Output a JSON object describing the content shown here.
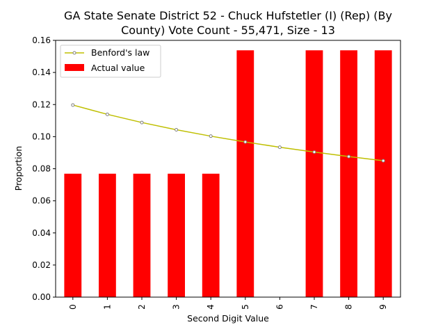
{
  "chart_data": {
    "type": "bar",
    "title_lines": [
      "GA State Senate District 52 - Chuck Hufstetler (I) (Rep) (By",
      "County) Vote Count - 55,471, Size - 13"
    ],
    "xlabel": "Second Digit Value",
    "ylabel": "Proportion",
    "categories": [
      "0",
      "1",
      "2",
      "3",
      "4",
      "5",
      "6",
      "7",
      "8",
      "9"
    ],
    "ylim": [
      0,
      0.16
    ],
    "yticks": [
      "0.00",
      "0.02",
      "0.04",
      "0.06",
      "0.08",
      "0.10",
      "0.12",
      "0.14",
      "0.16"
    ],
    "grid": false,
    "legend_position": "top-left",
    "series": [
      {
        "name": "Actual value",
        "kind": "bar",
        "color": "#ff0000",
        "values": [
          0.0769,
          0.0769,
          0.0769,
          0.0769,
          0.0769,
          0.1538,
          0.0,
          0.1538,
          0.1538,
          0.1538
        ]
      },
      {
        "name": "Benford's law",
        "kind": "line",
        "color": "#bfbf00",
        "marker_edge": "#808080",
        "values": [
          0.1197,
          0.1139,
          0.1088,
          0.1043,
          0.1003,
          0.0967,
          0.0934,
          0.0904,
          0.0876,
          0.085
        ]
      }
    ]
  }
}
